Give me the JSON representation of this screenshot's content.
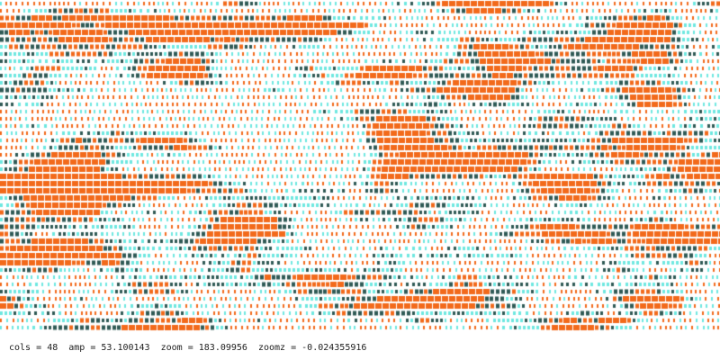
{
  "visualization": {
    "params": {
      "cols": "48",
      "amp": "53.100143",
      "zoom": "183.09956",
      "zoomz": "-0.024355916"
    },
    "colors": {
      "background": "#ffffff",
      "primary": "#f26a1b",
      "secondary": "#6ee8e0",
      "dark": "#2f5a55"
    }
  },
  "status": {
    "cols_label": "cols",
    "amp_label": "amp",
    "zoom_label": "zoom",
    "zoomz_label": "zoomz",
    "equals": "="
  }
}
